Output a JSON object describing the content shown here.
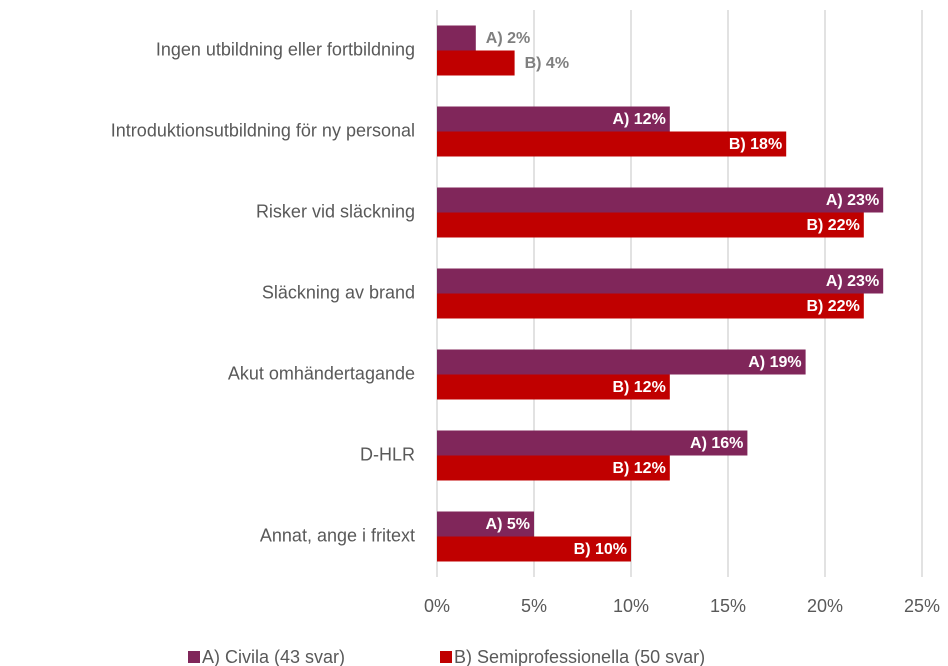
{
  "chart_data": {
    "type": "bar",
    "orientation": "horizontal",
    "categories": [
      "Ingen utbildning eller fortbildning",
      "Introduktionsutbildning för ny personal",
      "Risker vid släckning",
      "Släckning av brand",
      "Akut omhändertagande",
      "D-HLR",
      "Annat, ange i fritext"
    ],
    "series": [
      {
        "name": "A) Civila (43 svar)",
        "color": "#80265a",
        "values": [
          2,
          12,
          23,
          23,
          19,
          16,
          5
        ],
        "value_labels": [
          "A) 2%",
          "A) 12%",
          "A) 23%",
          "A) 23%",
          "A) 19%",
          "A) 16%",
          "A) 5%"
        ]
      },
      {
        "name": "B) Semiprofessionella (50 svar)",
        "color": "#c00000",
        "values": [
          4,
          18,
          22,
          22,
          12,
          12,
          10
        ],
        "value_labels": [
          "B) 4%",
          "B) 18%",
          "B) 22%",
          "B) 22%",
          "B) 12%",
          "B) 12%",
          "B) 10%"
        ]
      }
    ],
    "xlim": [
      0,
      25
    ],
    "xticks": [
      {
        "value": 0,
        "label": "0%"
      },
      {
        "value": 5,
        "label": "5%"
      },
      {
        "value": 10,
        "label": "10%"
      },
      {
        "value": 15,
        "label": "15%"
      },
      {
        "value": 20,
        "label": "20%"
      },
      {
        "value": 25,
        "label": "25%"
      }
    ],
    "grid": true,
    "legend": "bottom"
  }
}
